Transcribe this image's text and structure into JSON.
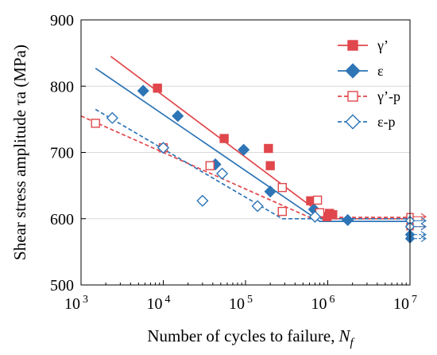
{
  "chart_data": {
    "type": "scatter",
    "xlabel": "Number of cycles to failure,",
    "xlabel_italic": "N",
    "xlabel_sub": "f",
    "ylabel": "Shear stress amplitude τa (MPa)",
    "xscale": "log",
    "xlim": [
      1000,
      10000000
    ],
    "ylim": [
      500,
      900
    ],
    "x_ticks": [
      {
        "value": 1000,
        "base": "10",
        "exp": "3"
      },
      {
        "value": 10000,
        "base": "10",
        "exp": "4"
      },
      {
        "value": 100000,
        "base": "10",
        "exp": "5"
      },
      {
        "value": 1000000,
        "base": "10",
        "exp": "6"
      },
      {
        "value": 10000000,
        "base": "10",
        "exp": "7"
      }
    ],
    "y_ticks": [
      "500",
      "600",
      "700",
      "800",
      "900"
    ],
    "legend_position": "top-right",
    "series": [
      {
        "name": "γ’",
        "color": "#e0474c",
        "marker": "square",
        "filled": true,
        "line_style": "solid",
        "points": [
          [
            8500,
            797
          ],
          [
            55000,
            721
          ],
          [
            190000,
            706
          ],
          [
            200000,
            680
          ],
          [
            620000,
            627
          ],
          [
            980000,
            603
          ],
          [
            1050000,
            608
          ],
          [
            1150000,
            606
          ]
        ],
        "fit": [
          [
            2300,
            845
          ],
          [
            1000000,
            600
          ],
          [
            10000000,
            600
          ]
        ],
        "runouts": [
          [
            10000000,
            588
          ]
        ]
      },
      {
        "name": "ε",
        "color": "#2e75b6",
        "marker": "diamond",
        "filled": true,
        "line_style": "solid",
        "points": [
          [
            5700,
            793
          ],
          [
            15000,
            755
          ],
          [
            43000,
            682
          ],
          [
            95000,
            704
          ],
          [
            200000,
            641
          ],
          [
            680000,
            614
          ],
          [
            1750000,
            598
          ]
        ],
        "fit": [
          [
            1500,
            827
          ],
          [
            800000,
            596
          ],
          [
            10000000,
            596
          ]
        ],
        "runouts": [
          [
            10000000,
            576
          ],
          [
            10000000,
            570
          ]
        ]
      },
      {
        "name": "γ’-p",
        "color": "#e0474c",
        "marker": "square",
        "filled": false,
        "line_style": "dashed",
        "points": [
          [
            1500,
            744
          ],
          [
            10000,
            707
          ],
          [
            37000,
            680
          ],
          [
            280000,
            647
          ],
          [
            280000,
            611
          ],
          [
            750000,
            628
          ],
          [
            800000,
            609
          ]
        ],
        "fit": [
          [
            1000,
            755
          ],
          [
            600000,
            602
          ],
          [
            10000000,
            602
          ]
        ],
        "runouts": [
          [
            10000000,
            603
          ]
        ]
      },
      {
        "name": "ε-p",
        "color": "#2e75b6",
        "marker": "diamond",
        "filled": false,
        "line_style": "dashed",
        "points": [
          [
            2400,
            752
          ],
          [
            10000,
            707
          ],
          [
            30000,
            627
          ],
          [
            52000,
            668
          ],
          [
            140000,
            619
          ],
          [
            700000,
            603
          ]
        ],
        "fit": [
          [
            1500,
            765
          ],
          [
            280000,
            600
          ],
          [
            10000000,
            600
          ]
        ],
        "runouts": [
          [
            10000000,
            597
          ],
          [
            10000000,
            588
          ]
        ]
      }
    ]
  }
}
